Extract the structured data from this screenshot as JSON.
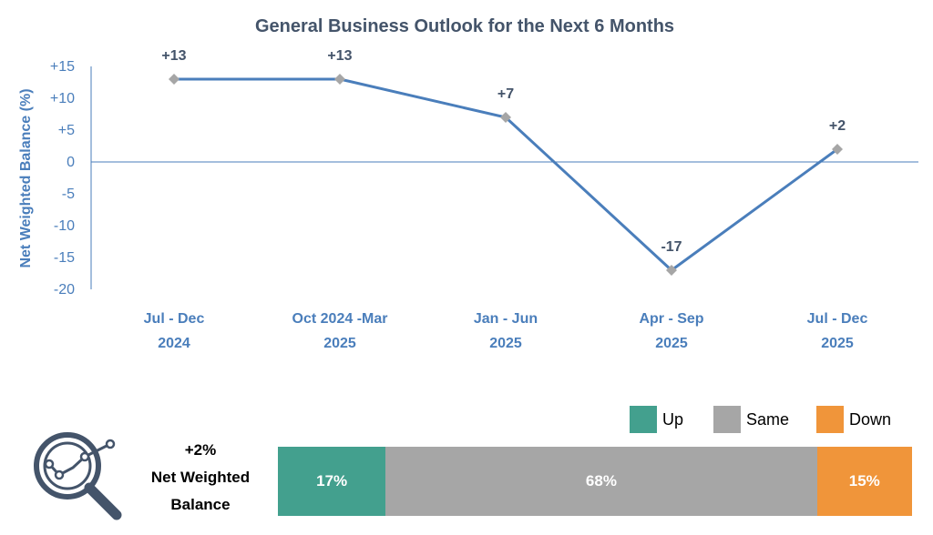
{
  "chart_data": {
    "type": "line",
    "title": "General Business Outlook for the Next 6 Months",
    "ylabel": "Net Weighted Balance (%)",
    "xlabel": "",
    "ylim": [
      -20,
      15
    ],
    "yticks": [
      15,
      10,
      5,
      0,
      -5,
      -10,
      -15,
      -20
    ],
    "ytick_labels": [
      "+15",
      "+10",
      "+5",
      "0",
      "-5",
      "-10",
      "-15",
      "-20"
    ],
    "categories": [
      [
        "Jul - Dec",
        "2024"
      ],
      [
        "Oct 2024 -Mar",
        "2025"
      ],
      [
        "Jan - Jun",
        "2025"
      ],
      [
        "Apr - Sep",
        "2025"
      ],
      [
        "Jul - Dec",
        "2025"
      ]
    ],
    "series": [
      {
        "values": [
          13,
          13,
          7,
          -17,
          2
        ],
        "data_labels": [
          "+13",
          "+13",
          "+7",
          "-17",
          "+2"
        ],
        "color": "#4a7ebb",
        "marker_color": "#a6a6a6"
      }
    ],
    "grid": false
  },
  "summary": {
    "value": "+2%",
    "line1": "Net Weighted",
    "line2": "Balance"
  },
  "distribution": {
    "legend": [
      {
        "label": "Up",
        "color": "#43a08e"
      },
      {
        "label": "Same",
        "color": "#a6a6a6"
      },
      {
        "label": "Down",
        "color": "#f0953a"
      }
    ],
    "segments": [
      {
        "label": "17%",
        "value": 17,
        "color": "#43a08e"
      },
      {
        "label": "68%",
        "value": 68,
        "color": "#a6a6a6"
      },
      {
        "label": "15%",
        "value": 15,
        "color": "#f0953a"
      }
    ]
  },
  "icon": "magnifier-chart-icon"
}
